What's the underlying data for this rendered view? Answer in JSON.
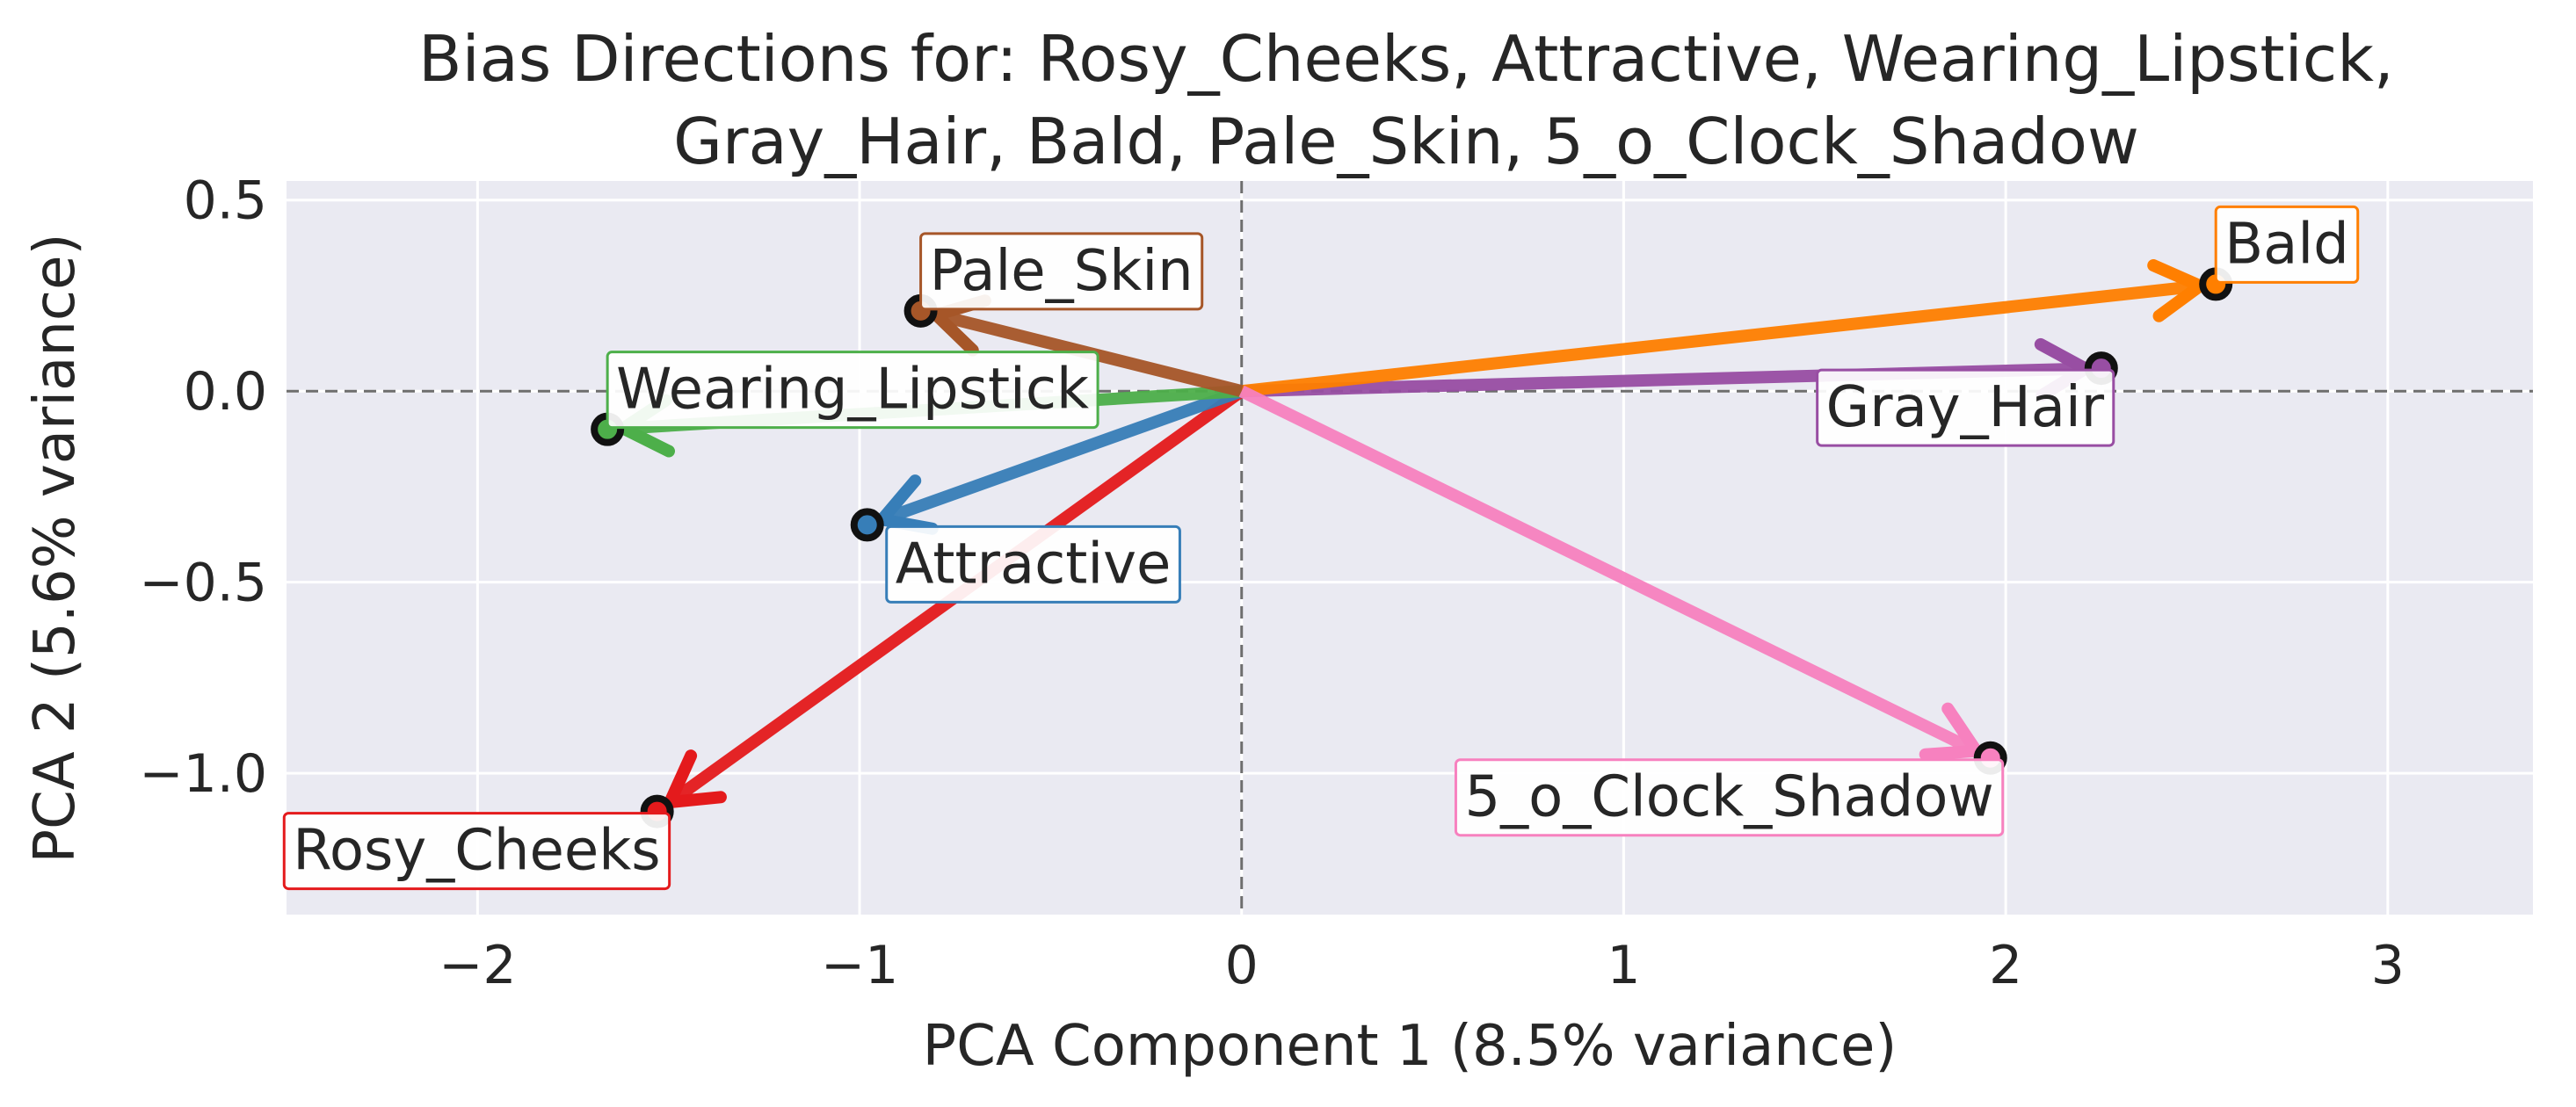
{
  "chart_data": {
    "type": "vector",
    "title": [
      "Bias Directions for: Rosy_Cheeks, Attractive, Wearing_Lipstick,",
      "Gray_Hair, Bald, Pale_Skin, 5_o_Clock_Shadow"
    ],
    "xlabel": "PCA Component 1 (8.5% variance)",
    "ylabel": "PCA 2 (5.6% variance)",
    "xlim": [
      -2.5,
      3.38
    ],
    "ylim": [
      -1.37,
      0.55
    ],
    "xticks": [
      -2,
      -1,
      0,
      1,
      2,
      3
    ],
    "xtick_labels": [
      "−2",
      "−1",
      "0",
      "1",
      "2",
      "3"
    ],
    "yticks": [
      0.5,
      0.0,
      -0.5,
      -1.0
    ],
    "ytick_labels": [
      "0.5",
      "0.0",
      "−0.5",
      "−1.0"
    ],
    "grid": true,
    "reference_lines": {
      "x": 0,
      "y": 0,
      "style": "dashed"
    },
    "vectors": [
      {
        "name": "Rosy_Cheeks",
        "x": -1.53,
        "y": -1.1,
        "color": "#e41a1c",
        "label_pos": "below-left"
      },
      {
        "name": "Attractive",
        "x": -0.98,
        "y": -0.35,
        "color": "#377eb8",
        "label_pos": "below-right"
      },
      {
        "name": "Wearing_Lipstick",
        "x": -1.66,
        "y": -0.1,
        "color": "#4daf4a",
        "label_pos": "above-right"
      },
      {
        "name": "Gray_Hair",
        "x": 2.25,
        "y": 0.06,
        "color": "#984ea3",
        "label_pos": "below-left"
      },
      {
        "name": "Bald",
        "x": 2.55,
        "y": 0.28,
        "color": "#ff7f00",
        "label_pos": "above-right"
      },
      {
        "name": "Pale_Skin",
        "x": -0.84,
        "y": 0.21,
        "color": "#a65628",
        "label_pos": "above-right"
      },
      {
        "name": "5_o_Clock_Shadow",
        "x": 1.96,
        "y": -0.96,
        "color": "#f781bf",
        "label_pos": "below-left"
      }
    ]
  }
}
